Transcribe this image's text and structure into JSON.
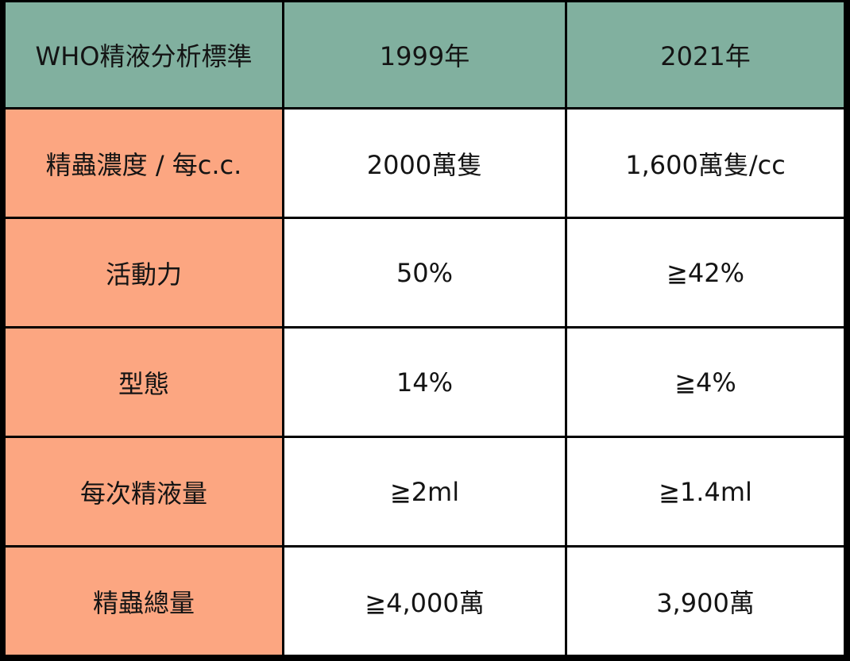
{
  "table": {
    "header": [
      "WHO精液分析標準",
      "1999年",
      "2021年"
    ],
    "rows": [
      [
        "精蟲濃度 / 每c.c.",
        "2000萬隻",
        "1,600萬隻/cc"
      ],
      [
        "活動力",
        "50%",
        "≧42%"
      ],
      [
        "型態",
        "14%",
        "≧4%"
      ],
      [
        "每次精液量",
        "≧2ml",
        "≧1.4ml"
      ],
      [
        "精蟲總量",
        "≧4,000萬",
        "3,900萬"
      ]
    ]
  },
  "colors": {
    "header_bg": "#81b09f",
    "label_bg": "#fca681",
    "value_bg": "#ffffff",
    "border": "#000000"
  }
}
